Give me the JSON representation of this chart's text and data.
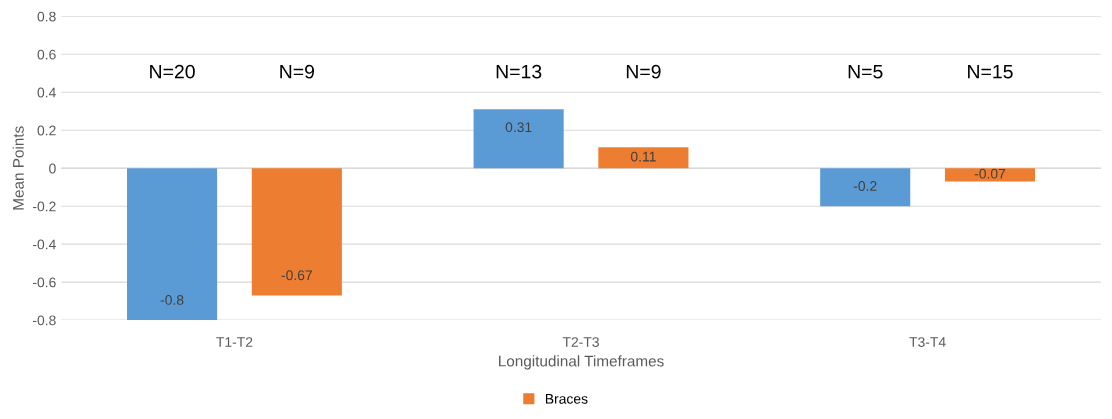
{
  "chart_data": {
    "type": "bar",
    "categories": [
      "T1-T2",
      "T2-T3",
      "T3-T4"
    ],
    "series": [
      {
        "color": "#5b9bd5",
        "values": [
          -0.8,
          0.31,
          -0.2
        ]
      },
      {
        "name": "Braces",
        "color": "#ed7d31",
        "values": [
          -0.67,
          0.11,
          -0.07
        ]
      }
    ],
    "xlabel": "Longitudinal Timeframes",
    "ylabel": "Mean Points",
    "ylim": [
      -0.8,
      0.8
    ],
    "yticks": [
      -0.8,
      -0.6,
      -0.4,
      -0.2,
      0,
      0.2,
      0.4,
      0.6,
      0.8
    ],
    "grid": "y",
    "legend": "bottom",
    "data_labels": true,
    "annotations": [
      "N=20",
      "N=9",
      "N=13",
      "N=9",
      "N=5",
      "N=15"
    ]
  }
}
